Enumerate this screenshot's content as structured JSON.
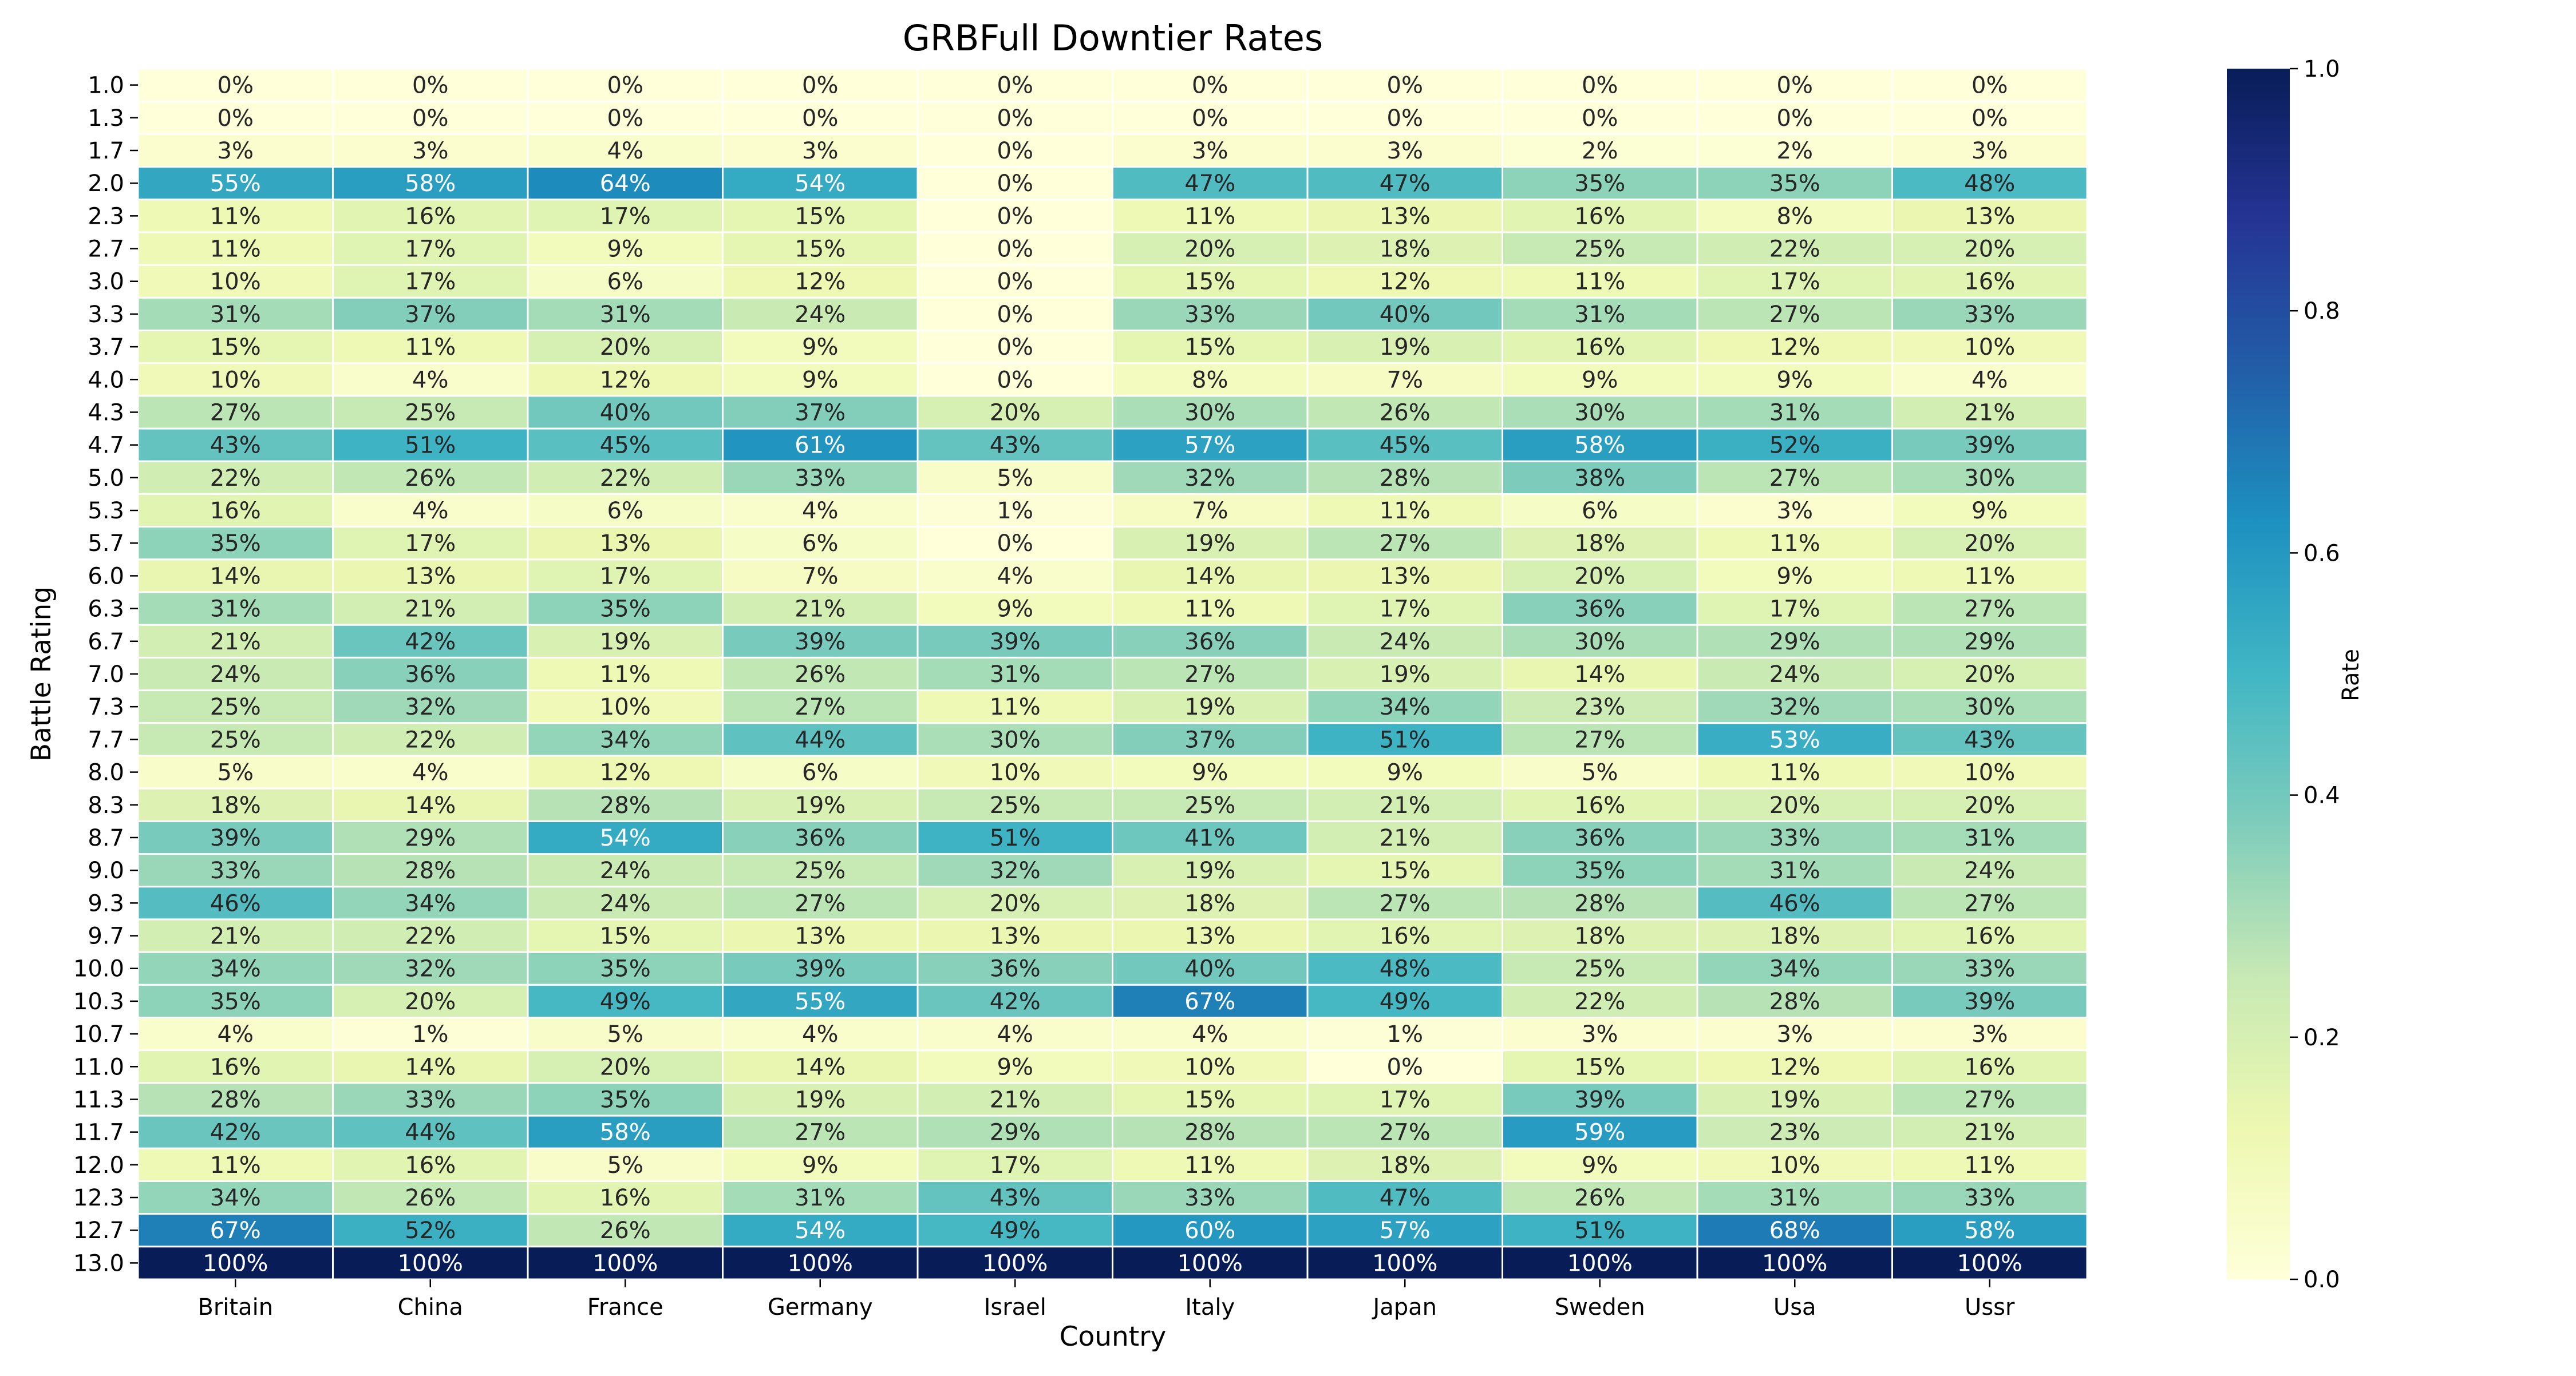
{
  "chart_data": {
    "type": "heatmap",
    "title": "GRBFull Downtier Rates",
    "xlabel": "Country",
    "ylabel": "Battle Rating",
    "colorbar_label": "Rate",
    "colorbar_ticks": [
      "0.0",
      "0.2",
      "0.4",
      "0.6",
      "0.8",
      "1.0"
    ],
    "colormap": "YlGnBu",
    "vmin": 0.0,
    "vmax": 1.0,
    "value_format": "percent",
    "columns": [
      "Britain",
      "China",
      "France",
      "Germany",
      "Israel",
      "Italy",
      "Japan",
      "Sweden",
      "Usa",
      "Ussr"
    ],
    "rows": [
      "1.0",
      "1.3",
      "1.7",
      "2.0",
      "2.3",
      "2.7",
      "3.0",
      "3.3",
      "3.7",
      "4.0",
      "4.3",
      "4.7",
      "5.0",
      "5.3",
      "5.7",
      "6.0",
      "6.3",
      "6.7",
      "7.0",
      "7.3",
      "7.7",
      "8.0",
      "8.3",
      "8.7",
      "9.0",
      "9.3",
      "9.7",
      "10.0",
      "10.3",
      "10.7",
      "11.0",
      "11.3",
      "11.7",
      "12.0",
      "12.3",
      "12.7",
      "13.0"
    ],
    "values": [
      [
        0,
        0,
        0,
        0,
        0,
        0,
        0,
        0,
        0,
        0
      ],
      [
        0,
        0,
        0,
        0,
        0,
        0,
        0,
        0,
        0,
        0
      ],
      [
        3,
        3,
        4,
        3,
        0,
        3,
        3,
        2,
        2,
        3
      ],
      [
        55,
        58,
        64,
        54,
        0,
        47,
        47,
        35,
        35,
        48
      ],
      [
        11,
        16,
        17,
        15,
        0,
        11,
        13,
        16,
        8,
        13
      ],
      [
        11,
        17,
        9,
        15,
        0,
        20,
        18,
        25,
        22,
        20
      ],
      [
        10,
        17,
        6,
        12,
        0,
        15,
        12,
        11,
        17,
        16
      ],
      [
        31,
        37,
        31,
        24,
        0,
        33,
        40,
        31,
        27,
        33
      ],
      [
        15,
        11,
        20,
        9,
        0,
        15,
        19,
        16,
        12,
        10
      ],
      [
        10,
        4,
        12,
        9,
        0,
        8,
        7,
        9,
        9,
        4
      ],
      [
        27,
        25,
        40,
        37,
        20,
        30,
        26,
        30,
        31,
        21
      ],
      [
        43,
        51,
        45,
        61,
        43,
        57,
        45,
        58,
        52,
        39
      ],
      [
        22,
        26,
        22,
        33,
        5,
        32,
        28,
        38,
        27,
        30
      ],
      [
        16,
        4,
        6,
        4,
        1,
        7,
        11,
        6,
        3,
        9
      ],
      [
        35,
        17,
        13,
        6,
        0,
        19,
        27,
        18,
        11,
        20
      ],
      [
        14,
        13,
        17,
        7,
        4,
        14,
        13,
        20,
        9,
        11
      ],
      [
        31,
        21,
        35,
        21,
        9,
        11,
        17,
        36,
        17,
        27
      ],
      [
        21,
        42,
        19,
        39,
        39,
        36,
        24,
        30,
        29,
        29
      ],
      [
        24,
        36,
        11,
        26,
        31,
        27,
        19,
        14,
        24,
        20
      ],
      [
        25,
        32,
        10,
        27,
        11,
        19,
        34,
        23,
        32,
        30
      ],
      [
        25,
        22,
        34,
        44,
        30,
        37,
        51,
        27,
        53,
        43
      ],
      [
        5,
        4,
        12,
        6,
        10,
        9,
        9,
        5,
        11,
        10
      ],
      [
        18,
        14,
        28,
        19,
        25,
        25,
        21,
        16,
        20,
        20
      ],
      [
        39,
        29,
        54,
        36,
        51,
        41,
        21,
        36,
        33,
        31
      ],
      [
        33,
        28,
        24,
        25,
        32,
        19,
        15,
        35,
        31,
        24
      ],
      [
        46,
        34,
        24,
        27,
        20,
        18,
        27,
        28,
        46,
        27
      ],
      [
        21,
        22,
        15,
        13,
        13,
        13,
        16,
        18,
        18,
        16
      ],
      [
        34,
        32,
        35,
        39,
        36,
        40,
        48,
        25,
        34,
        33
      ],
      [
        35,
        20,
        49,
        55,
        42,
        67,
        49,
        22,
        28,
        39
      ],
      [
        4,
        1,
        5,
        4,
        4,
        4,
        1,
        3,
        3,
        3
      ],
      [
        16,
        14,
        20,
        14,
        9,
        10,
        0,
        15,
        12,
        16
      ],
      [
        28,
        33,
        35,
        19,
        21,
        15,
        17,
        39,
        19,
        27
      ],
      [
        42,
        44,
        58,
        27,
        29,
        28,
        27,
        59,
        23,
        21
      ],
      [
        11,
        16,
        5,
        9,
        17,
        11,
        18,
        9,
        10,
        11
      ],
      [
        34,
        26,
        16,
        31,
        43,
        33,
        47,
        26,
        31,
        33
      ],
      [
        67,
        52,
        26,
        54,
        49,
        60,
        57,
        51,
        68,
        58
      ],
      [
        100,
        100,
        100,
        100,
        100,
        100,
        100,
        100,
        100,
        100
      ]
    ]
  }
}
